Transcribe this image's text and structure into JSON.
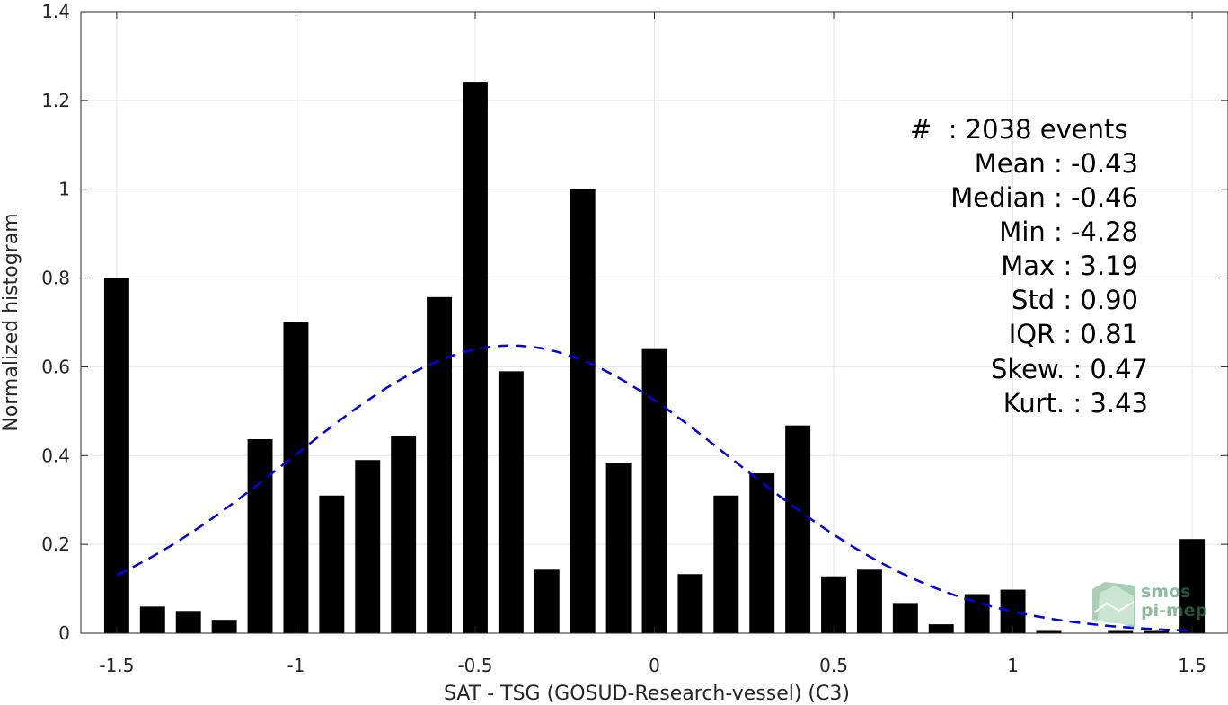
{
  "chart_data": {
    "type": "bar",
    "xlabel": "SAT - TSG (GOSUD-Research-vessel) (C3)",
    "ylabel": "Normalized histogram",
    "xlim": [
      -1.6,
      1.6
    ],
    "ylim": [
      0,
      1.4
    ],
    "grid": true,
    "x_ticks": [
      -1.5,
      -1,
      -0.5,
      0,
      0.5,
      1,
      1.5
    ],
    "x_tick_labels": [
      "-1.5",
      "-1",
      "-0.5",
      "0",
      "0.5",
      "1",
      "1.5"
    ],
    "y_ticks": [
      0,
      0.2,
      0.4,
      0.6,
      0.8,
      1,
      1.2,
      1.4
    ],
    "y_tick_labels": [
      "0",
      "0.2",
      "0.4",
      "0.6",
      "0.8",
      "1",
      "1.2",
      "1.4"
    ],
    "bar_color": "#000000",
    "bar_width": 0.07,
    "bins": {
      "x": [
        -1.5,
        -1.4,
        -1.3,
        -1.2,
        -1.1,
        -1.0,
        -0.9,
        -0.8,
        -0.7,
        -0.6,
        -0.5,
        -0.4,
        -0.3,
        -0.2,
        -0.1,
        0.0,
        0.1,
        0.2,
        0.3,
        0.4,
        0.5,
        0.6,
        0.7,
        0.8,
        0.9,
        1.0,
        1.1,
        1.2,
        1.3,
        1.4,
        1.5
      ],
      "values": [
        0.8,
        0.06,
        0.05,
        0.03,
        0.437,
        0.7,
        0.31,
        0.39,
        0.443,
        0.757,
        1.242,
        0.59,
        0.143,
        1.0,
        0.384,
        0.64,
        0.133,
        0.31,
        0.36,
        0.468,
        0.128,
        0.143,
        0.068,
        0.02,
        0.088,
        0.098,
        0.005,
        0.0,
        0.005,
        0.005,
        0.212
      ]
    },
    "fit": {
      "type": "normal",
      "mean": -0.4,
      "std": 0.615,
      "peak": 0.648,
      "x_range": [
        -1.5,
        1.5
      ],
      "color": "#0000e6",
      "style": "dashed"
    },
    "annotations": [
      "#  : 2038 events",
      "Mean : -0.43",
      "Median : -0.46",
      "Min : -4.28",
      "Max : 3.19",
      "Std : 0.90",
      "IQR : 0.81",
      "Skew. : 0.47",
      "Kurt. : 3.43"
    ]
  },
  "logo": {
    "line1": "smos",
    "line2": "pi-mep",
    "color": "#3f8f63"
  }
}
